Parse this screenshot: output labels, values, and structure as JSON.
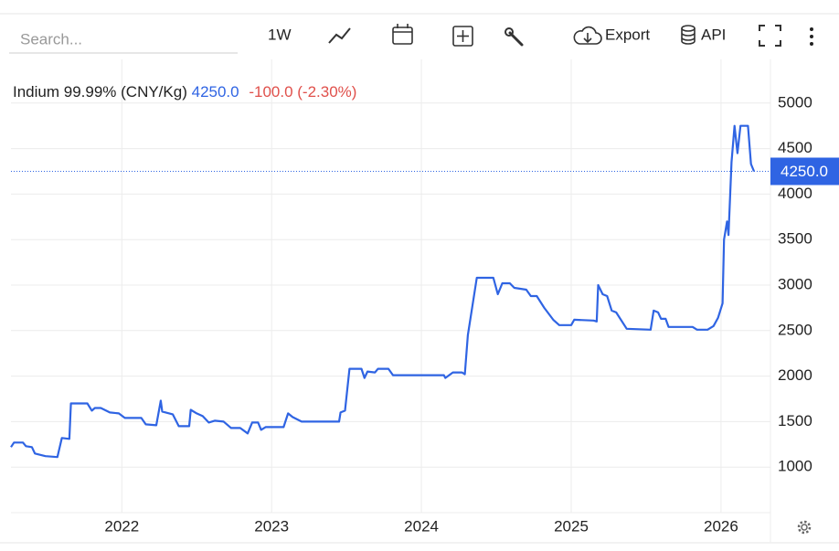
{
  "toolbar": {
    "search_placeholder": "Search...",
    "interval": "1W",
    "export": "Export",
    "api": "API"
  },
  "chart_data": {
    "type": "line",
    "title": "Indium 99.99% (CNY/Kg)",
    "last_price": {
      "value": 4250,
      "label": "4250.0"
    },
    "change": "-100.0 (-2.30%)",
    "color": "#2f64e3",
    "change_color": "#e0504b",
    "grid": true,
    "x": [
      2021.26,
      2021.28,
      2021.34,
      2021.36,
      2021.4,
      2021.42,
      2021.49,
      2021.57,
      2021.6,
      2021.65,
      2021.66,
      2021.77,
      2021.8,
      2021.82,
      2021.86,
      2021.92,
      2021.98,
      2022.02,
      2022.13,
      2022.16,
      2022.23,
      2022.26,
      2022.27,
      2022.34,
      2022.38,
      2022.45,
      2022.46,
      2022.5,
      2022.54,
      2022.58,
      2022.62,
      2022.68,
      2022.73,
      2022.79,
      2022.84,
      2022.87,
      2022.91,
      2022.93,
      2022.96,
      2023.08,
      2023.11,
      2023.14,
      2023.2,
      2023.45,
      2023.46,
      2023.49,
      2023.52,
      2023.6,
      2023.62,
      2023.64,
      2023.69,
      2023.71,
      2023.78,
      2023.81,
      2024.15,
      2024.16,
      2024.21,
      2024.27,
      2024.29,
      2024.31,
      2024.37,
      2024.48,
      2024.51,
      2024.54,
      2024.59,
      2024.62,
      2024.7,
      2024.73,
      2024.77,
      2024.82,
      2024.88,
      2024.92,
      2025.0,
      2025.02,
      2025.15,
      2025.17,
      2025.18,
      2025.21,
      2025.24,
      2025.27,
      2025.3,
      2025.37,
      2025.53,
      2025.55,
      2025.58,
      2025.6,
      2025.63,
      2025.65,
      2025.81,
      2025.84,
      2025.91,
      2025.95,
      2025.98,
      2026.01,
      2026.02,
      2026.04,
      2026.05,
      2026.07,
      2026.09,
      2026.11,
      2026.13,
      2026.18,
      2026.2,
      2026.22
    ],
    "values": [
      1220,
      1270,
      1270,
      1230,
      1220,
      1150,
      1120,
      1110,
      1320,
      1310,
      1700,
      1700,
      1620,
      1650,
      1650,
      1600,
      1590,
      1540,
      1540,
      1470,
      1460,
      1730,
      1610,
      1580,
      1450,
      1450,
      1630,
      1590,
      1560,
      1490,
      1510,
      1500,
      1430,
      1430,
      1370,
      1490,
      1490,
      1410,
      1440,
      1440,
      1590,
      1550,
      1500,
      1500,
      1600,
      1620,
      2080,
      2080,
      1980,
      2050,
      2040,
      2080,
      2080,
      2010,
      2010,
      1980,
      2040,
      2040,
      2020,
      2450,
      3080,
      3080,
      2900,
      3020,
      3020,
      2970,
      2950,
      2880,
      2880,
      2750,
      2620,
      2560,
      2560,
      2620,
      2610,
      2600,
      3000,
      2900,
      2880,
      2720,
      2700,
      2520,
      2510,
      2720,
      2700,
      2630,
      2630,
      2540,
      2540,
      2510,
      2510,
      2550,
      2640,
      2800,
      3500,
      3700,
      3550,
      4350,
      4750,
      4450,
      4750,
      4750,
      4330,
      4250
    ],
    "xlim": [
      2021.26,
      2026.33
    ],
    "xticks": [
      2022,
      2023,
      2024,
      2025,
      2026
    ],
    "ylim": [
      500,
      5480
    ],
    "yticks": [
      1000,
      1500,
      2000,
      2500,
      3000,
      3500,
      4000,
      4500,
      5000
    ]
  }
}
